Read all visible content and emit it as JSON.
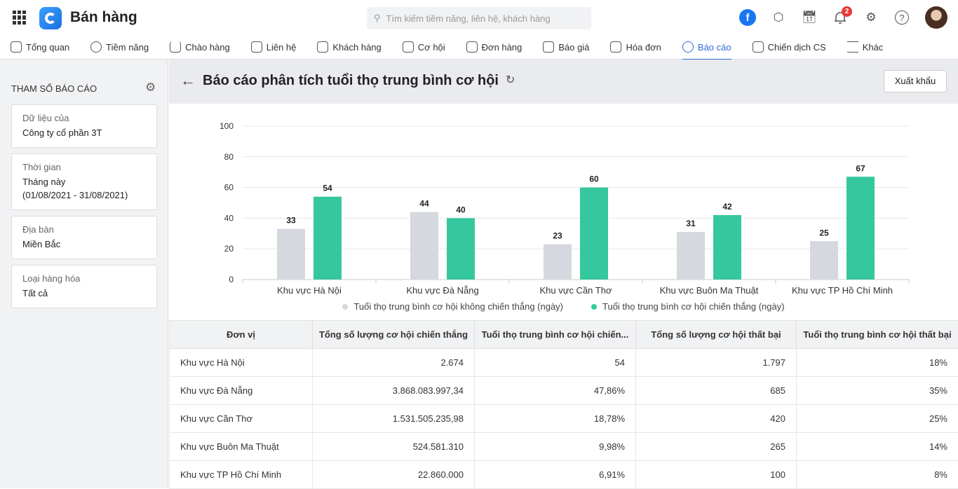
{
  "header": {
    "app_title": "Bán hàng",
    "search_placeholder": "Tìm kiếm tiềm năng, liên hệ, khách hàng",
    "notification_count": "2"
  },
  "nav": [
    {
      "label": "Tổng quan"
    },
    {
      "label": "Tiềm năng"
    },
    {
      "label": "Chào hàng"
    },
    {
      "label": "Liên hệ"
    },
    {
      "label": "Khách hàng"
    },
    {
      "label": "Cơ hội"
    },
    {
      "label": "Đơn hàng"
    },
    {
      "label": "Báo giá"
    },
    {
      "label": "Hóa đơn"
    },
    {
      "label": "Báo cáo",
      "active": true
    },
    {
      "label": "Chiến dịch CS"
    },
    {
      "label": "Khác"
    }
  ],
  "sidebar": {
    "title": "THAM SỐ BÁO CÁO",
    "params": [
      {
        "label": "Dữ liệu của",
        "value": "Công ty cổ phần 3T"
      },
      {
        "label": "Thời gian",
        "value": "Tháng này",
        "value2": "(01/08/2021 - 31/08/2021)"
      },
      {
        "label": "Địa bàn",
        "value": "Miền Bắc"
      },
      {
        "label": "Loại hàng hóa",
        "value": "Tất cả"
      }
    ]
  },
  "report": {
    "title": "Báo cáo phân tích tuổi thọ trung bình cơ hội",
    "export_label": "Xuất khẩu"
  },
  "chart_data": {
    "type": "bar",
    "categories": [
      "Khu vực Hà Nội",
      "Khu vực Đà Nẵng",
      "Khu vực Cần Thơ",
      "Khu vực Buôn Ma Thuật",
      "Khu vực TP Hồ Chí Minh"
    ],
    "series": [
      {
        "name": "Tuổi thọ trung bình cơ hội không chiến thắng (ngày)",
        "color": "#d5d8de",
        "values": [
          33,
          44,
          23,
          31,
          25
        ]
      },
      {
        "name": "Tuổi thọ trung bình cơ hội chiến thắng (ngày)",
        "color": "#35c89e",
        "values": [
          54,
          40,
          60,
          42,
          67
        ]
      }
    ],
    "ylim": [
      0,
      100
    ],
    "yticks": [
      "0",
      "20",
      "40",
      "60",
      "80",
      "100"
    ],
    "legend": "bottom",
    "grid": true
  },
  "table": {
    "headers": [
      "Đơn vị",
      "Tổng số lượng cơ hội chiến thắng",
      "Tuổi thọ trung bình cơ hội chiến...",
      "Tổng số lượng cơ hội thất bại",
      "Tuổi thọ trung bình cơ hội thất bại"
    ],
    "rows": [
      [
        "Khu vực Hà Nội",
        "2.674",
        "54",
        "1.797",
        "18%"
      ],
      [
        "Khu vực Đà Nẵng",
        "3.868.083.997,34",
        "47,86%",
        "685",
        "35%"
      ],
      [
        "Khu vực Cần Thơ",
        "1.531.505.235,98",
        "18,78%",
        "420",
        "25%"
      ],
      [
        "Khu vực Buôn Ma Thuật",
        "524.581.310",
        "9,98%",
        "265",
        "14%"
      ],
      [
        "Khu vực TP Hồ Chí Minh",
        "22.860.000",
        "6,91%",
        "100",
        "8%"
      ]
    ]
  }
}
